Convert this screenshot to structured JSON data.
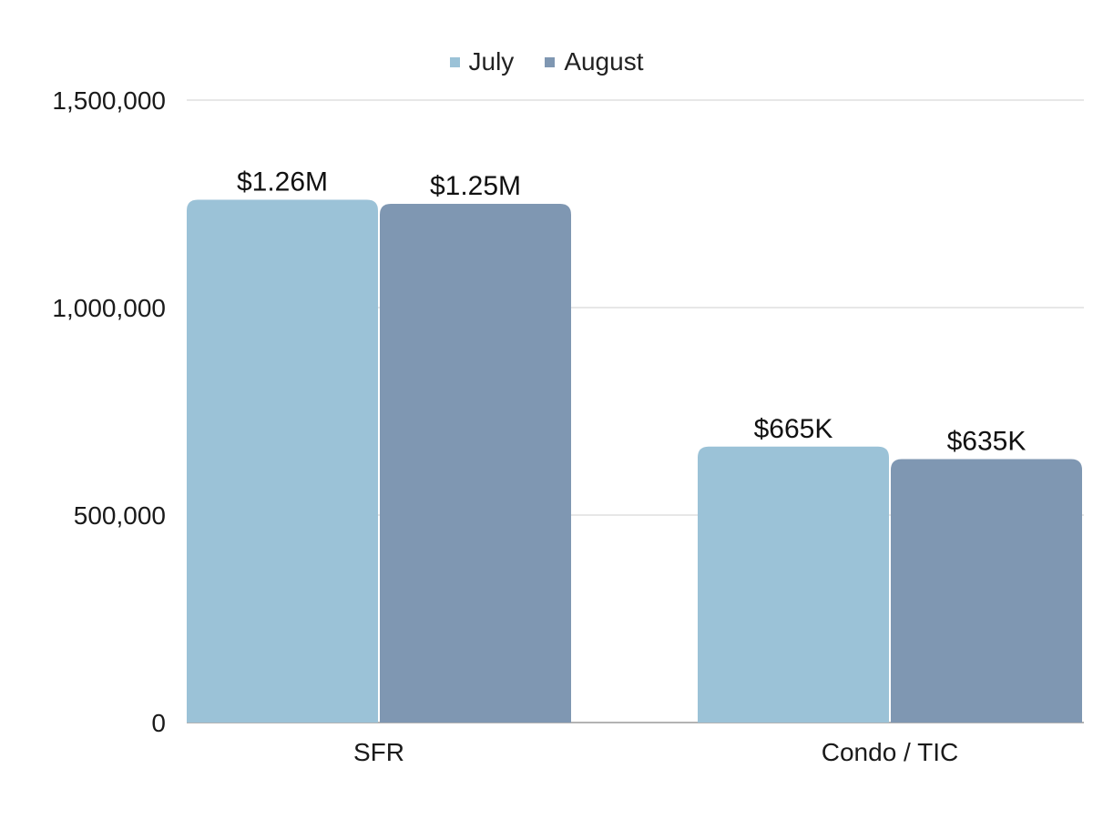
{
  "chart_data": {
    "type": "bar",
    "categories": [
      "SFR",
      "Condo / TIC"
    ],
    "series": [
      {
        "name": "July",
        "values": [
          1260000,
          665000
        ],
        "labels": [
          "$1.26M",
          "$665K"
        ],
        "color": "#9BC2D7"
      },
      {
        "name": "August",
        "values": [
          1250000,
          635000
        ],
        "labels": [
          "$1.25M",
          "$635K"
        ],
        "color": "#7F97B2"
      }
    ],
    "yticks": [
      "0",
      "500,000",
      "1,000,000",
      "1,500,000"
    ],
    "ylim": [
      0,
      1500000
    ],
    "grid": true,
    "legend_position": "top-center",
    "title": "",
    "xlabel": "",
    "ylabel": ""
  }
}
